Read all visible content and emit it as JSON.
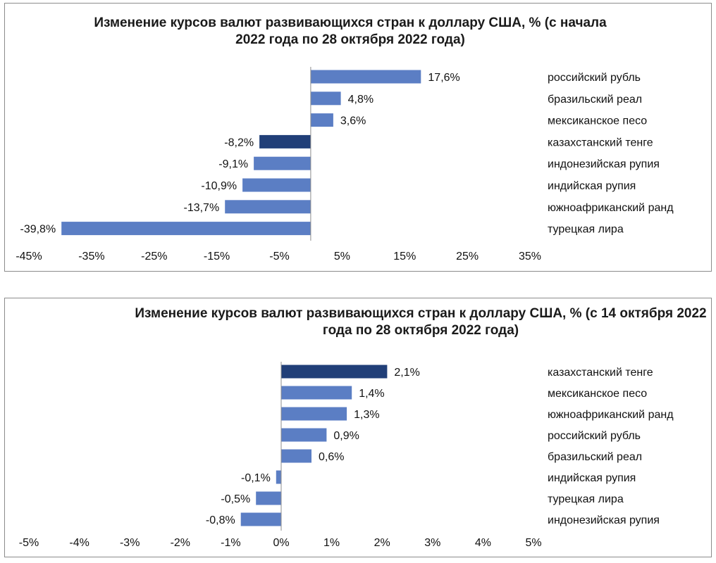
{
  "colors": {
    "bar": "#5b7ec4",
    "highlight": "#213f78",
    "axis": "#8c8c8c"
  },
  "chart_data": [
    {
      "type": "bar",
      "orientation": "horizontal",
      "title": "Изменение курсов валют развивающихся стран к доллару США, % (с начала 2022 года по 28 октября 2022 года)",
      "categories": [
        "российский рубль",
        "бразильский реал",
        "мексиканское песо",
        "казахстанский тенге",
        "индонезийская рупия",
        "индийская рупия",
        "южноафриканский ранд",
        "турецкая лира"
      ],
      "values": [
        17.6,
        4.8,
        3.6,
        -8.2,
        -9.1,
        -10.9,
        -13.7,
        -39.8
      ],
      "data_labels": [
        "17,6%",
        "4,8%",
        "3,6%",
        "-8,2%",
        "-9,1%",
        "-10,9%",
        "-13,7%",
        "-39,8%"
      ],
      "highlight": [
        "казахстанский тенге"
      ],
      "xlim": [
        -45,
        35
      ],
      "xticks": [
        -45,
        -35,
        -25,
        -15,
        -5,
        5,
        15,
        25,
        35
      ],
      "xtick_labels": [
        "-45%",
        "-35%",
        "-25%",
        "-15%",
        "-5%",
        "5%",
        "15%",
        "25%",
        "35%"
      ],
      "xlabel": "",
      "ylabel": "",
      "grid": false,
      "legend": "none"
    },
    {
      "type": "bar",
      "orientation": "horizontal",
      "title": "Изменение курсов валют развивающихся стран к доллару США, % (с 14 октября 2022 года по 28 октября 2022 года)",
      "categories": [
        "казахстанский тенге",
        "мексиканское песо",
        "южноафриканский ранд",
        "российский рубль",
        "бразильский реал",
        "индийская рупия",
        "турецкая лира",
        "индонезийская рупия"
      ],
      "values": [
        2.1,
        1.4,
        1.3,
        0.9,
        0.6,
        -0.1,
        -0.5,
        -0.8
      ],
      "data_labels": [
        "2,1%",
        "1,4%",
        "1,3%",
        "0,9%",
        "0,6%",
        "-0,1%",
        "-0,5%",
        "-0,8%"
      ],
      "highlight": [
        "казахстанский тенге"
      ],
      "xlim": [
        -5,
        5
      ],
      "xticks": [
        -5,
        -4,
        -3,
        -2,
        -1,
        0,
        1,
        2,
        3,
        4,
        5
      ],
      "xtick_labels": [
        "-5%",
        "-4%",
        "-3%",
        "-2%",
        "-1%",
        "0%",
        "1%",
        "2%",
        "3%",
        "4%",
        "5%"
      ],
      "xlabel": "",
      "ylabel": "",
      "grid": false,
      "legend": "none"
    }
  ]
}
